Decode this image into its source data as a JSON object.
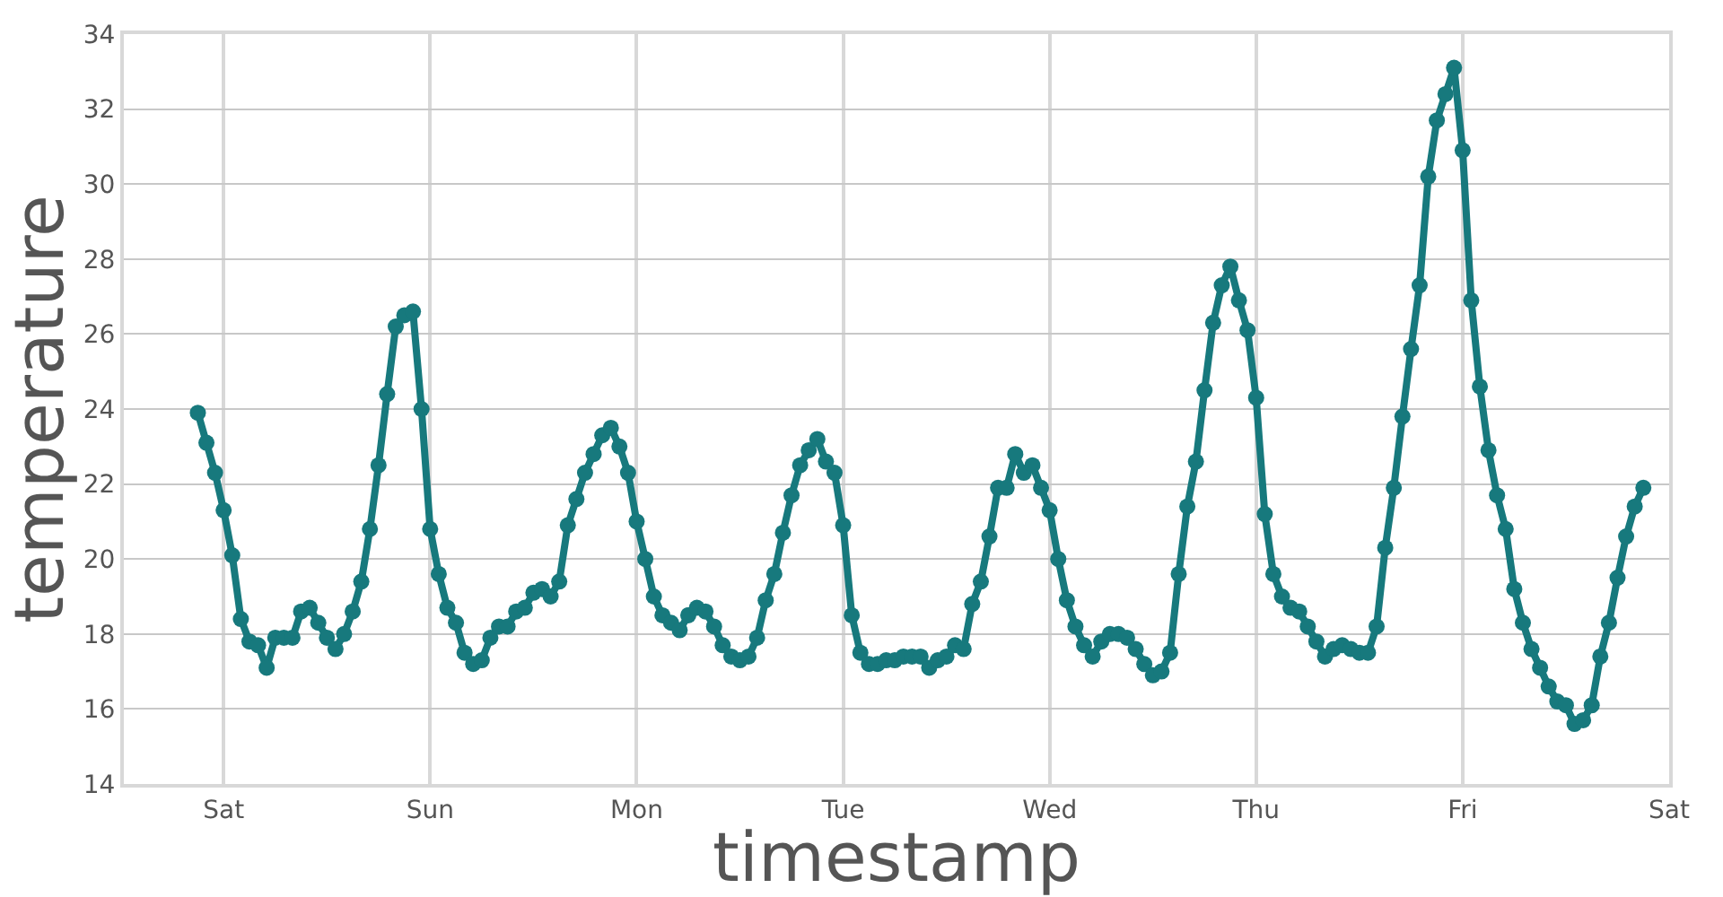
{
  "chart_data": {
    "type": "line",
    "xlabel": "timestamp",
    "ylabel": "temperature",
    "categories": [
      null,
      null,
      null,
      "Sat",
      null,
      null,
      null,
      null,
      null,
      null,
      null,
      null,
      null,
      null,
      null,
      null,
      null,
      null,
      null,
      null,
      null,
      null,
      null,
      null,
      null,
      null,
      null,
      "Sun",
      null,
      null,
      null,
      null,
      null,
      null,
      null,
      null,
      null,
      null,
      null,
      null,
      null,
      null,
      null,
      null,
      null,
      null,
      null,
      null,
      null,
      null,
      null,
      "Mon",
      null,
      null,
      null,
      null,
      null,
      null,
      null,
      null,
      null,
      null,
      null,
      null,
      null,
      null,
      null,
      null,
      null,
      null,
      null,
      null,
      null,
      null,
      null,
      "Tue",
      null,
      null,
      null,
      null,
      null,
      null,
      null,
      null,
      null,
      null,
      null,
      null,
      null,
      null,
      null,
      null,
      null,
      null,
      null,
      null,
      null,
      null,
      null,
      "Wed",
      null,
      null,
      null,
      null,
      null,
      null,
      null,
      null,
      null,
      null,
      null,
      null,
      null,
      null,
      null,
      null,
      null,
      null,
      null,
      null,
      null,
      null,
      null,
      "Thu",
      null,
      null,
      null,
      null,
      null,
      null,
      null,
      null,
      null,
      null,
      null,
      null,
      null,
      null,
      null,
      null,
      null,
      null,
      null,
      null,
      null,
      null,
      null,
      "Fri",
      null,
      null,
      null,
      null,
      null,
      null,
      null,
      null,
      null,
      null,
      null,
      null,
      null,
      null,
      null,
      null,
      null,
      null,
      null,
      null,
      null,
      null,
      null,
      "Sat"
    ],
    "series": [
      {
        "color": "#17797d",
        "values": [
          23.9,
          23.1,
          22.3,
          21.3,
          20.1,
          18.4,
          17.8,
          17.7,
          17.1,
          17.9,
          17.9,
          17.9,
          18.6,
          18.7,
          18.3,
          17.9,
          17.6,
          18.0,
          18.6,
          19.4,
          20.8,
          22.5,
          24.4,
          26.2,
          26.5,
          26.6,
          24.0,
          20.8,
          19.6,
          18.7,
          18.3,
          17.5,
          17.2,
          17.3,
          17.9,
          18.2,
          18.2,
          18.6,
          18.7,
          19.1,
          19.2,
          19.0,
          19.4,
          20.9,
          21.6,
          22.3,
          22.8,
          23.3,
          23.5,
          23.0,
          22.3,
          21.0,
          20.0,
          19.0,
          18.5,
          18.3,
          18.1,
          18.5,
          18.7,
          18.6,
          18.2,
          17.7,
          17.4,
          17.3,
          17.4,
          17.9,
          18.9,
          19.6,
          20.7,
          21.7,
          22.5,
          22.9,
          23.2,
          22.6,
          22.3,
          20.9,
          18.5,
          17.5,
          17.2,
          17.2,
          17.3,
          17.3,
          17.4,
          17.4,
          17.4,
          17.1,
          17.3,
          17.4,
          17.7,
          17.6,
          18.8,
          19.4,
          20.6,
          21.9,
          21.9,
          22.8,
          22.3,
          22.5,
          21.9,
          21.3,
          20.0,
          18.9,
          18.2,
          17.7,
          17.4,
          17.8,
          18.0,
          18.0,
          17.9,
          17.6,
          17.2,
          16.9,
          17.0,
          17.5,
          19.6,
          21.4,
          22.6,
          24.5,
          26.3,
          27.3,
          27.8,
          26.9,
          26.1,
          24.3,
          21.2,
          19.6,
          19.0,
          18.7,
          18.6,
          18.2,
          17.8,
          17.4,
          17.6,
          17.7,
          17.6,
          17.5,
          17.5,
          18.2,
          20.3,
          21.9,
          23.8,
          25.6,
          27.3,
          30.2,
          31.7,
          32.4,
          33.1,
          30.9,
          26.9,
          24.6,
          22.9,
          21.7,
          20.8,
          19.2,
          18.3,
          17.6,
          17.1,
          16.6,
          16.2,
          16.1,
          15.6,
          15.7,
          16.1,
          17.4,
          18.3,
          19.5,
          20.6,
          21.4,
          21.9,
          null,
          null,
          null
        ]
      }
    ],
    "ylim": [
      14,
      34
    ],
    "yticks": [
      14,
      16,
      18,
      20,
      22,
      24,
      26,
      28,
      30,
      32,
      34
    ],
    "grid": true,
    "marker": "circle",
    "line_style": "solid"
  }
}
